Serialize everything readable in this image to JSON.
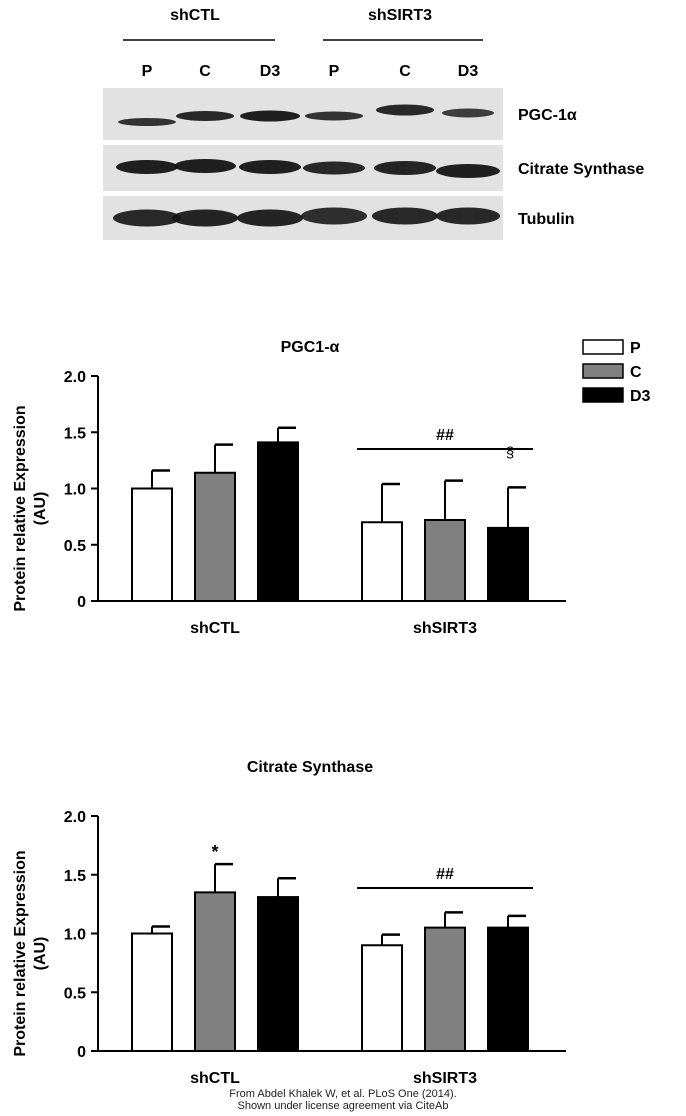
{
  "blot": {
    "groups": [
      "shCTL",
      "shSIRT3"
    ],
    "lanes": [
      "P",
      "C",
      "D3",
      "P",
      "C",
      "D3"
    ],
    "bands": [
      "PGC-1α",
      "Citrate Synthase",
      "Tubulin"
    ]
  },
  "legend": {
    "items": [
      {
        "label": "P",
        "color": "#ffffff"
      },
      {
        "label": "C",
        "color": "#808080"
      },
      {
        "label": "D3",
        "color": "#000000"
      }
    ]
  },
  "chart_data": [
    {
      "type": "bar",
      "title": "PGC1-α",
      "ylabel": "Protein relative Expression (AU)",
      "xlabel": "",
      "categories": [
        "shCTL",
        "shSIRT3"
      ],
      "ylim": [
        0,
        2.0
      ],
      "yticks": [
        "0",
        "0.5",
        "1.0",
        "1.5",
        "2.0"
      ],
      "series": [
        {
          "name": "P",
          "color": "#ffffff",
          "values": [
            1.0,
            0.7
          ],
          "errors": [
            0.16,
            0.34
          ]
        },
        {
          "name": "C",
          "color": "#808080",
          "values": [
            1.14,
            0.72
          ],
          "errors": [
            0.25,
            0.35
          ]
        },
        {
          "name": "D3",
          "color": "#000000",
          "values": [
            1.41,
            0.65
          ],
          "errors": [
            0.13,
            0.36
          ]
        }
      ],
      "annotations": {
        "group_bar": "##",
        "marks": [
          {
            "series": "D3",
            "category": "shSIRT3",
            "text": "§"
          }
        ]
      }
    },
    {
      "type": "bar",
      "title": "Citrate Synthase",
      "ylabel": "Protein relative Expression (AU)",
      "xlabel": "",
      "categories": [
        "shCTL",
        "shSIRT3"
      ],
      "ylim": [
        0,
        2.0
      ],
      "yticks": [
        "0",
        "0.5",
        "1.0",
        "1.5",
        "2.0"
      ],
      "series": [
        {
          "name": "P",
          "color": "#ffffff",
          "values": [
            1.0,
            0.9
          ],
          "errors": [
            0.06,
            0.09
          ]
        },
        {
          "name": "C",
          "color": "#808080",
          "values": [
            1.35,
            1.05
          ],
          "errors": [
            0.24,
            0.13
          ]
        },
        {
          "name": "D3",
          "color": "#000000",
          "values": [
            1.31,
            1.05
          ],
          "errors": [
            0.16,
            0.1
          ]
        }
      ],
      "annotations": {
        "group_bar": "##",
        "marks": [
          {
            "series": "C",
            "category": "shCTL",
            "text": "*"
          }
        ]
      }
    }
  ],
  "credit": {
    "line1": "From Abdel Khalek W, et al. PLoS One (2014).",
    "line2": "Shown under license agreement via CiteAb"
  }
}
